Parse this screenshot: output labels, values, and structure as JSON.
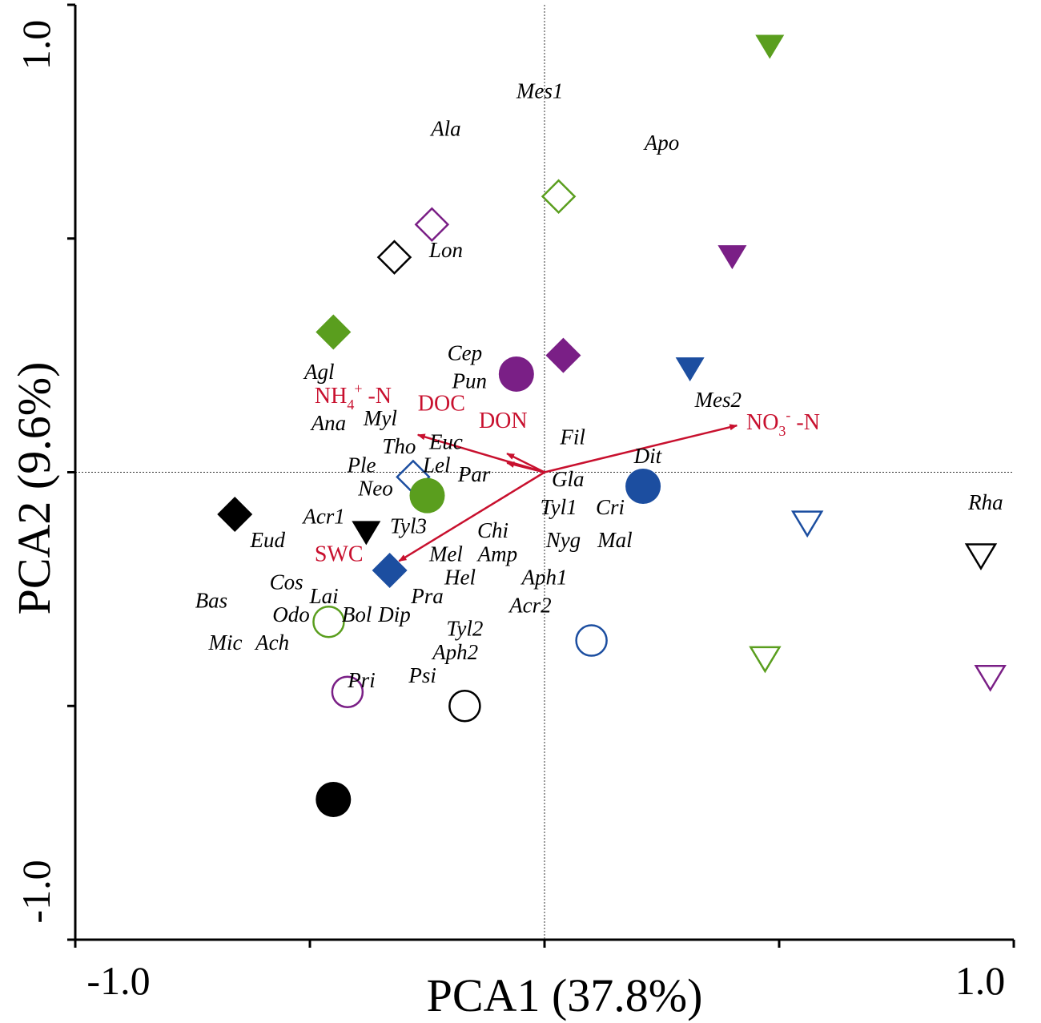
{
  "chart_data": {
    "type": "scatter",
    "xlabel": "PCA1 (37.8%)",
    "ylabel": "PCA2 (9.6%)",
    "xlim": [
      -1.0,
      1.0
    ],
    "ylim": [
      -1.0,
      1.0
    ],
    "x_ticks": [
      -1.0,
      -0.5,
      0,
      0.5,
      1.0
    ],
    "y_ticks": [
      -1.0,
      -0.5,
      0,
      0.5,
      1.0
    ],
    "x_tick_labels": [
      "-1.0",
      "1.0"
    ],
    "y_tick_labels": [
      "-1.0",
      "1.0"
    ],
    "zero_lines": true,
    "colors": {
      "black": "#000000",
      "green": "#5a9e1e",
      "purple": "#7a1f86",
      "blue": "#1c4ea0",
      "arrow": "#c8102e"
    },
    "samples": [
      {
        "x": 0.48,
        "y": 0.91,
        "shape": "triangle-down",
        "fill": "filled",
        "color": "green"
      },
      {
        "x": 0.03,
        "y": 0.59,
        "shape": "diamond",
        "fill": "open",
        "color": "green"
      },
      {
        "x": -0.24,
        "y": 0.53,
        "shape": "diamond",
        "fill": "open",
        "color": "purple"
      },
      {
        "x": -0.32,
        "y": 0.46,
        "shape": "diamond",
        "fill": "open",
        "color": "black"
      },
      {
        "x": 0.4,
        "y": 0.46,
        "shape": "triangle-down",
        "fill": "filled",
        "color": "purple"
      },
      {
        "x": -0.45,
        "y": 0.3,
        "shape": "diamond",
        "fill": "filled",
        "color": "green"
      },
      {
        "x": 0.04,
        "y": 0.25,
        "shape": "diamond",
        "fill": "filled",
        "color": "purple"
      },
      {
        "x": -0.06,
        "y": 0.21,
        "shape": "circle",
        "fill": "filled",
        "color": "purple"
      },
      {
        "x": 0.31,
        "y": 0.22,
        "shape": "triangle-down",
        "fill": "filled",
        "color": "blue"
      },
      {
        "x": 0.21,
        "y": -0.03,
        "shape": "circle",
        "fill": "filled",
        "color": "blue"
      },
      {
        "x": -0.28,
        "y": -0.01,
        "shape": "diamond",
        "fill": "open",
        "color": "blue"
      },
      {
        "x": -0.25,
        "y": -0.05,
        "shape": "circle",
        "fill": "filled",
        "color": "green"
      },
      {
        "x": -0.66,
        "y": -0.09,
        "shape": "diamond",
        "fill": "filled",
        "color": "black"
      },
      {
        "x": -0.38,
        "y": -0.13,
        "shape": "triangle-down",
        "fill": "filled",
        "color": "black"
      },
      {
        "x": -0.33,
        "y": -0.21,
        "shape": "diamond",
        "fill": "filled",
        "color": "blue"
      },
      {
        "x": 0.56,
        "y": -0.11,
        "shape": "triangle-down",
        "fill": "open",
        "color": "blue"
      },
      {
        "x": 0.93,
        "y": -0.18,
        "shape": "triangle-down",
        "fill": "open",
        "color": "black"
      },
      {
        "x": -0.46,
        "y": -0.32,
        "shape": "circle",
        "fill": "open",
        "color": "green"
      },
      {
        "x": 0.1,
        "y": -0.36,
        "shape": "circle",
        "fill": "open",
        "color": "blue"
      },
      {
        "x": 0.47,
        "y": -0.4,
        "shape": "triangle-down",
        "fill": "open",
        "color": "green"
      },
      {
        "x": 0.95,
        "y": -0.44,
        "shape": "triangle-down",
        "fill": "open",
        "color": "purple"
      },
      {
        "x": -0.42,
        "y": -0.47,
        "shape": "circle",
        "fill": "open",
        "color": "purple"
      },
      {
        "x": -0.17,
        "y": -0.5,
        "shape": "circle",
        "fill": "open",
        "color": "black"
      },
      {
        "x": -0.45,
        "y": -0.7,
        "shape": "circle",
        "fill": "filled",
        "color": "black"
      }
    ],
    "env_vectors": [
      {
        "label": "NO3- -N",
        "x": 0.41,
        "y": 0.1
      },
      {
        "label": "NH4+ -N",
        "x": -0.27,
        "y": 0.08
      },
      {
        "label": "DOC",
        "x": -0.08,
        "y": 0.02
      },
      {
        "label": "DON",
        "x": -0.08,
        "y": 0.04
      },
      {
        "label": "SWC",
        "x": -0.31,
        "y": -0.19
      }
    ],
    "env_labels": [
      {
        "id": "nh4",
        "base": "NH",
        "sub": "4",
        "sup": "+",
        "suffix": " -N",
        "x": -0.49,
        "y": 0.148
      },
      {
        "id": "doc",
        "text": "DOC",
        "x": -0.27,
        "y": 0.132
      },
      {
        "id": "don",
        "text": "DON",
        "x": -0.14,
        "y": 0.095
      },
      {
        "id": "no3",
        "base": "NO",
        "sub": "3",
        "sup": "-",
        "suffix": " -N",
        "x": 0.43,
        "y": 0.092
      },
      {
        "id": "swc",
        "text": "SWC",
        "x": -0.49,
        "y": -0.19
      }
    ],
    "species": [
      {
        "name": "Mes1",
        "x": -0.01,
        "y": 0.8
      },
      {
        "name": "Ala",
        "x": -0.21,
        "y": 0.72
      },
      {
        "name": "Apo",
        "x": 0.25,
        "y": 0.69
      },
      {
        "name": "Lon",
        "x": -0.21,
        "y": 0.46
      },
      {
        "name": "Cep",
        "x": -0.17,
        "y": 0.24
      },
      {
        "name": "Agl",
        "x": -0.48,
        "y": 0.2
      },
      {
        "name": "Pun",
        "x": -0.16,
        "y": 0.18
      },
      {
        "name": "Mes2",
        "x": 0.37,
        "y": 0.14
      },
      {
        "name": "Ana",
        "x": -0.46,
        "y": 0.09
      },
      {
        "name": "Myl",
        "x": -0.35,
        "y": 0.1
      },
      {
        "name": "Fil",
        "x": 0.06,
        "y": 0.06
      },
      {
        "name": "Euc",
        "x": -0.21,
        "y": 0.05
      },
      {
        "name": "Tho",
        "x": -0.31,
        "y": 0.04
      },
      {
        "name": "Dit",
        "x": 0.22,
        "y": 0.02
      },
      {
        "name": "Ple",
        "x": -0.39,
        "y": -0.0
      },
      {
        "name": "Lel",
        "x": -0.23,
        "y": -0.0
      },
      {
        "name": "Par",
        "x": -0.15,
        "y": -0.02
      },
      {
        "name": "Gla",
        "x": 0.05,
        "y": -0.03
      },
      {
        "name": "Rha",
        "x": 0.94,
        "y": -0.08
      },
      {
        "name": "Neo",
        "x": -0.36,
        "y": -0.05
      },
      {
        "name": "Tyl1",
        "x": 0.03,
        "y": -0.09
      },
      {
        "name": "Cri",
        "x": 0.14,
        "y": -0.09
      },
      {
        "name": "Acr1",
        "x": -0.47,
        "y": -0.11
      },
      {
        "name": "Chi",
        "x": -0.11,
        "y": -0.14
      },
      {
        "name": "Tyl3",
        "x": -0.29,
        "y": -0.13
      },
      {
        "name": "Eud",
        "x": -0.59,
        "y": -0.16
      },
      {
        "name": "Nyg",
        "x": 0.04,
        "y": -0.16
      },
      {
        "name": "Mal",
        "x": 0.15,
        "y": -0.16
      },
      {
        "name": "Mel",
        "x": -0.21,
        "y": -0.19
      },
      {
        "name": "Amp",
        "x": -0.1,
        "y": -0.19
      },
      {
        "name": "Hel",
        "x": -0.18,
        "y": -0.24
      },
      {
        "name": "Aph1",
        "x": 0.0,
        "y": -0.24
      },
      {
        "name": "Cos",
        "x": -0.55,
        "y": -0.25
      },
      {
        "name": "Pra",
        "x": -0.25,
        "y": -0.28
      },
      {
        "name": "Lai",
        "x": -0.47,
        "y": -0.28
      },
      {
        "name": "Bas",
        "x": -0.71,
        "y": -0.29
      },
      {
        "name": "Acr2",
        "x": -0.03,
        "y": -0.3
      },
      {
        "name": "Bol",
        "x": -0.4,
        "y": -0.32
      },
      {
        "name": "Dip",
        "x": -0.32,
        "y": -0.32
      },
      {
        "name": "Odo",
        "x": -0.54,
        "y": -0.32
      },
      {
        "name": "Tyl2",
        "x": -0.17,
        "y": -0.35
      },
      {
        "name": "Mic",
        "x": -0.68,
        "y": -0.38
      },
      {
        "name": "Ach",
        "x": -0.58,
        "y": -0.38
      },
      {
        "name": "Aph2",
        "x": -0.19,
        "y": -0.4
      },
      {
        "name": "Pri",
        "x": -0.39,
        "y": -0.46
      },
      {
        "name": "Psi",
        "x": -0.26,
        "y": -0.45
      }
    ]
  }
}
